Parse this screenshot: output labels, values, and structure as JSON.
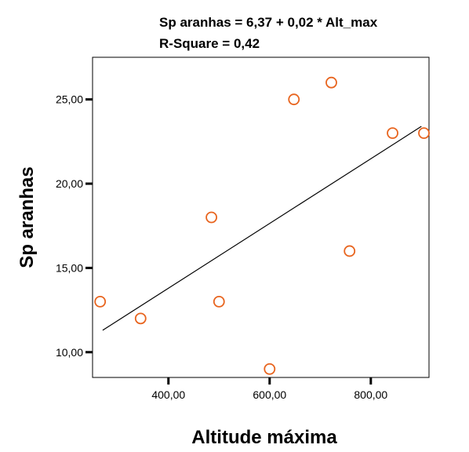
{
  "chart_data": {
    "type": "scatter",
    "title": "",
    "annotations": [
      "Sp aranhas = 6,37 + 0,02 * Alt_max",
      "R-Square = 0,42"
    ],
    "xlabel": "Altitude máxima",
    "ylabel": "Sp aranhas",
    "xlim": [
      250,
      915
    ],
    "ylim": [
      8.5,
      27.5
    ],
    "x_ticks": [
      400,
      600,
      800
    ],
    "x_tick_labels": [
      "400,00",
      "600,00",
      "800,00"
    ],
    "y_ticks": [
      10,
      15,
      20,
      25
    ],
    "y_tick_labels": [
      "10,00",
      "15,00",
      "20,00",
      "25,00"
    ],
    "points": [
      {
        "x": 265,
        "y": 13
      },
      {
        "x": 345,
        "y": 12
      },
      {
        "x": 485,
        "y": 18
      },
      {
        "x": 500,
        "y": 13
      },
      {
        "x": 600,
        "y": 9
      },
      {
        "x": 648,
        "y": 25
      },
      {
        "x": 722,
        "y": 26
      },
      {
        "x": 758,
        "y": 16
      },
      {
        "x": 843,
        "y": 23
      },
      {
        "x": 905,
        "y": 23
      }
    ],
    "fit_line": {
      "x": [
        270,
        900
      ],
      "y": [
        11.3,
        23.4
      ]
    },
    "marker_color": "#E8641E",
    "line_color": "#000000",
    "grid": false,
    "legend": "none"
  }
}
